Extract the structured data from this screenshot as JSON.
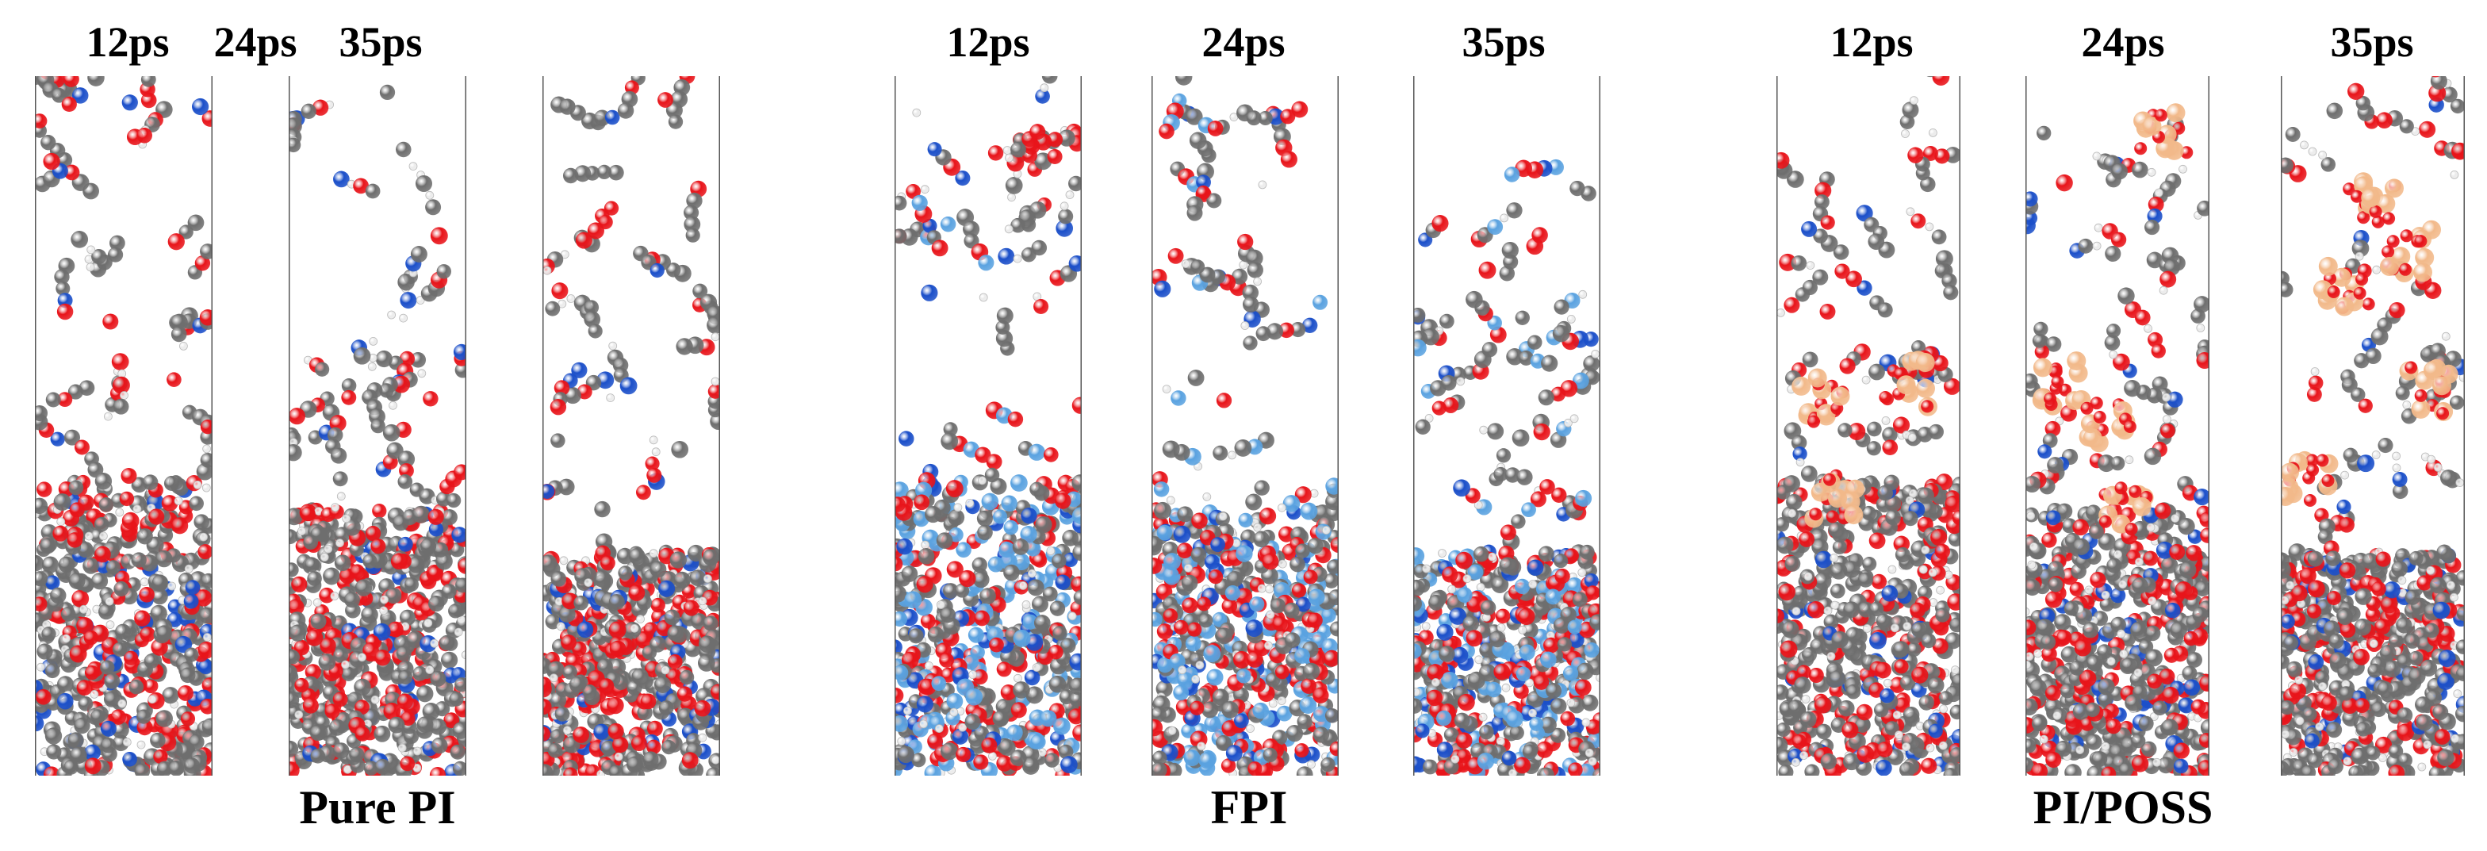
{
  "groups": [
    {
      "name": "Pure PI",
      "snapshots": [
        {
          "time": "12ps"
        },
        {
          "time": "24ps"
        },
        {
          "time": "35ps"
        }
      ],
      "atom_colors": {
        "carbon": "#6e6e6e",
        "oxygen": "#e8141a",
        "nitrogen": "#1b4fc9",
        "hydrogen": "#ebebeb"
      }
    },
    {
      "name": "FPI",
      "snapshots": [
        {
          "time": "12ps"
        },
        {
          "time": "24ps"
        },
        {
          "time": "35ps"
        }
      ],
      "atom_colors": {
        "carbon": "#6e6e6e",
        "oxygen": "#e8141a",
        "nitrogen": "#1b4fc9",
        "hydrogen": "#ebebeb",
        "fluorine": "#5aa2e0"
      }
    },
    {
      "name": "PI/POSS",
      "snapshots": [
        {
          "time": "12ps"
        },
        {
          "time": "24ps"
        },
        {
          "time": "35ps"
        }
      ],
      "atom_colors": {
        "carbon": "#6e6e6e",
        "oxygen": "#e8141a",
        "nitrogen": "#1b4fc9",
        "hydrogen": "#ebebeb",
        "silicon": "#f2b98a"
      }
    }
  ]
}
